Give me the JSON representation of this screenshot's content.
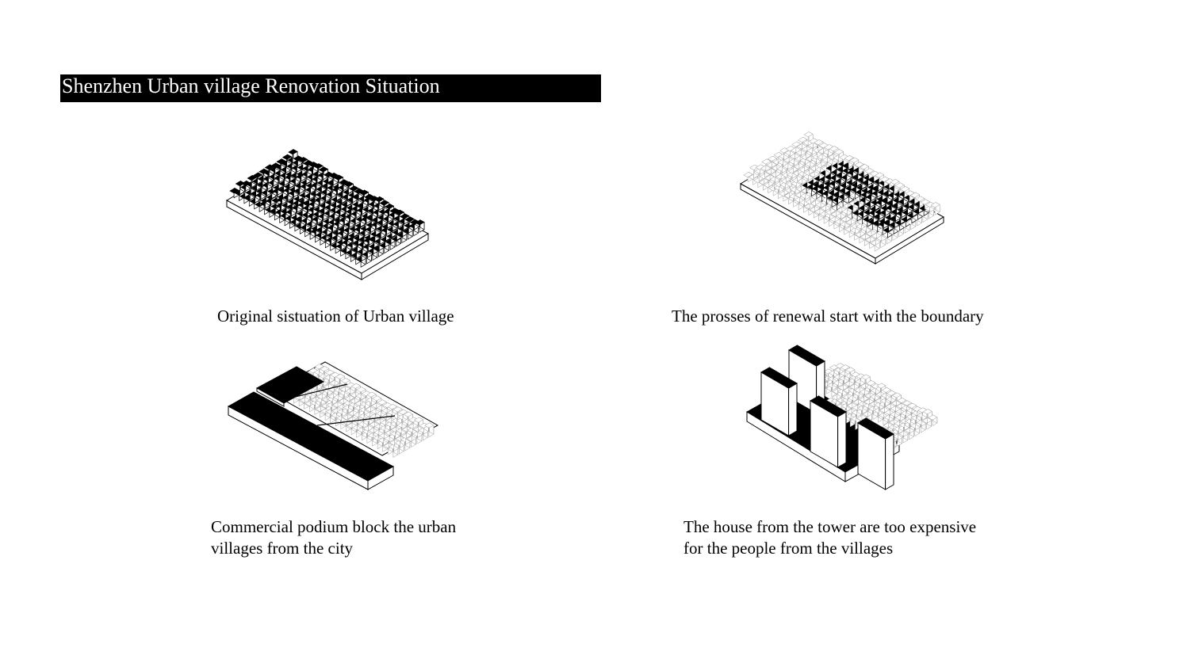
{
  "page": {
    "title": "Shenzhen Urban village Renovation Situation"
  },
  "panels": [
    {
      "id": "original",
      "caption": "Original sistuation of Urban village",
      "illustration": "dense-village-black-roofs"
    },
    {
      "id": "boundary",
      "caption": "The prosses of renewal start with the boundary",
      "illustration": "village-partially-renewed"
    },
    {
      "id": "podium",
      "caption_lines": [
        "Commercial podium block the urban",
        "villages from the city"
      ],
      "illustration": "village-with-commercial-podium"
    },
    {
      "id": "towers",
      "caption_lines": [
        "The house from the tower are too expensive",
        "for the people from the villages"
      ],
      "illustration": "village-with-towers"
    }
  ],
  "colors": {
    "ink": "#000000",
    "paper": "#ffffff",
    "faint_line": "#9a9a9a"
  }
}
